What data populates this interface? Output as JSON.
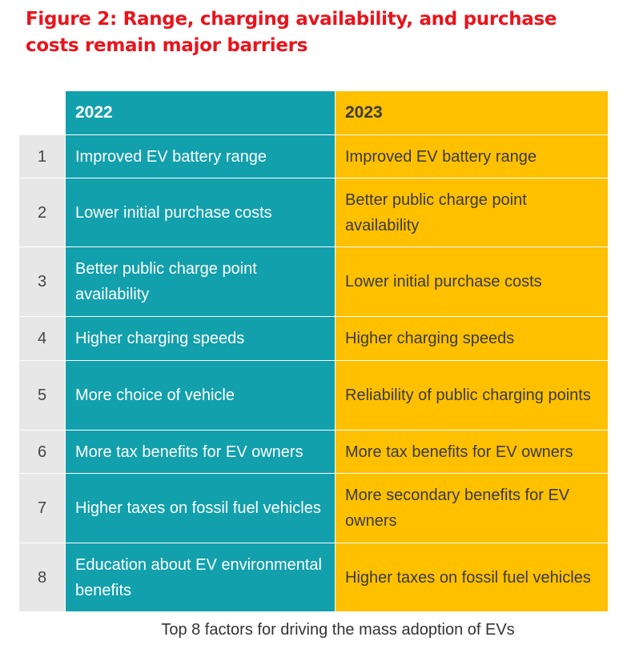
{
  "header": {
    "title": "Figure 2: Range, charging availability, and purchase costs remain major barriers"
  },
  "table": {
    "columns": [
      "2022",
      "2023"
    ],
    "rows": [
      [
        1,
        "Improved EV battery range",
        "Improved EV battery range"
      ],
      [
        2,
        "Lower initial purchase costs",
        "Better public charge point availability"
      ],
      [
        3,
        "Better public charge point availability",
        "Lower initial purchase costs"
      ],
      [
        4,
        "Higher charging speeds",
        "Higher charging speeds"
      ],
      [
        5,
        "More choice of vehicle",
        "Reliability of public charging points"
      ],
      [
        6,
        "More tax benefits for EV owners",
        "More tax benefits for EV owners"
      ],
      [
        7,
        "Higher taxes on fossil fuel vehicles",
        "More secondary benefits for EV owners"
      ],
      [
        8,
        "Education about EV environmental benefits",
        "Higher taxes on fossil fuel vehicles"
      ]
    ]
  },
  "caption": "Top 8 factors for driving the mass adoption of EVs"
}
